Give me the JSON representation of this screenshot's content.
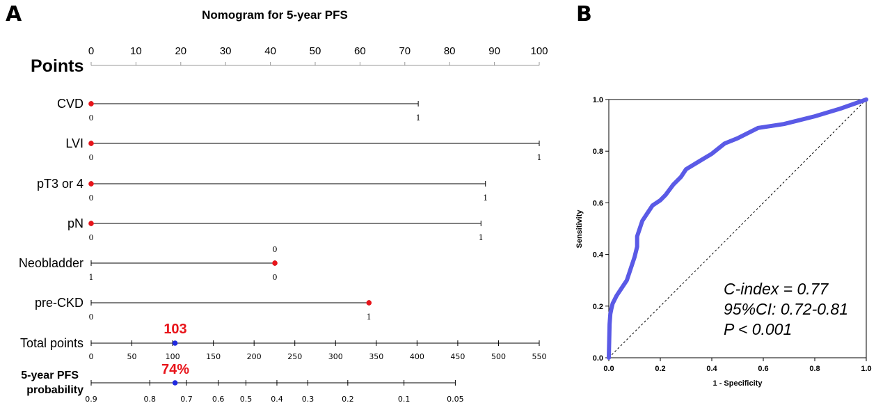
{
  "chart_data": [
    {
      "type": "nomogram",
      "panel_label": "A",
      "title": "Nomogram for 5-year PFS",
      "points_scale": {
        "label": "Points",
        "range": [
          0,
          100
        ],
        "tick_values": [
          0,
          10,
          20,
          30,
          40,
          50,
          60,
          70,
          80,
          90,
          100
        ]
      },
      "variables": [
        {
          "name": "CVD",
          "levels": [
            {
              "label": "0",
              "points": 0
            },
            {
              "label": "1",
              "points": 73
            }
          ],
          "selected_points": 0
        },
        {
          "name": "LVI",
          "levels": [
            {
              "label": "0",
              "points": 0
            },
            {
              "label": "1",
              "points": 100
            }
          ],
          "selected_points": 0
        },
        {
          "name": "pT3 or 4",
          "levels": [
            {
              "label": "0",
              "points": 0
            },
            {
              "label": "1",
              "points": 88
            }
          ],
          "selected_points": 0
        },
        {
          "name": "pN",
          "levels": [
            {
              "label": "0",
              "points": 0
            },
            {
              "label": "1",
              "points": 87
            }
          ],
          "selected_points": 0
        },
        {
          "name": "Neobladder",
          "levels": [
            {
              "label": "1",
              "points": 0
            },
            {
              "label": "0",
              "points": 41
            }
          ],
          "top_label": "0",
          "selected_points": 41
        },
        {
          "name": "pre-CKD",
          "levels": [
            {
              "label": "0",
              "points": 0
            },
            {
              "label": "1",
              "points": 62
            }
          ],
          "selected_points": 62
        }
      ],
      "total_points": {
        "label": "Total points",
        "range": [
          0,
          550
        ],
        "tick_values": [
          0,
          50,
          100,
          150,
          200,
          250,
          300,
          350,
          400,
          450,
          500,
          550
        ],
        "highlight_value": 103,
        "highlight_label": "103"
      },
      "probability": {
        "label_line1": "5-year PFS",
        "label_line2": "probability",
        "ticks": [
          {
            "label": "0.9",
            "value": 0.9,
            "at_total": 0
          },
          {
            "label": "0.8",
            "value": 0.8,
            "at_total": 72
          },
          {
            "label": "0.7",
            "value": 0.7,
            "at_total": 117
          },
          {
            "label": "0.6",
            "value": 0.6,
            "at_total": 156
          },
          {
            "label": "0.5",
            "value": 0.5,
            "at_total": 190
          },
          {
            "label": "0.4",
            "value": 0.4,
            "at_total": 228
          },
          {
            "label": "0.3",
            "value": 0.3,
            "at_total": 266
          },
          {
            "label": "0.2",
            "value": 0.2,
            "at_total": 315
          },
          {
            "label": "0.1",
            "value": 0.1,
            "at_total": 384
          },
          {
            "label": "0.05",
            "value": 0.05,
            "at_total": 447
          }
        ],
        "highlight_at_total": 103,
        "highlight_label": "74%"
      }
    },
    {
      "type": "line",
      "panel_label": "B",
      "xlabel": "1 - Specificity",
      "ylabel": "Sensitivity",
      "xlim": [
        0,
        1
      ],
      "ylim": [
        0,
        1
      ],
      "tick_values": [
        0.0,
        0.2,
        0.4,
        0.6,
        0.8,
        1.0
      ],
      "tick_labels": [
        "0.0",
        "0.2",
        "0.4",
        "0.6",
        "0.8",
        "1.0"
      ],
      "series": [
        {
          "x": [
            0,
            0.003,
            0.006,
            0.01,
            0.015,
            0.02,
            0.03,
            0.05,
            0.07,
            0.08,
            0.09,
            0.1,
            0.11,
            0.11,
            0.12,
            0.13,
            0.15,
            0.17,
            0.2,
            0.22,
            0.25,
            0.28,
            0.3,
            0.35,
            0.4,
            0.45,
            0.5,
            0.58,
            0.68,
            0.8,
            0.9,
            1.0
          ],
          "y": [
            0,
            0.13,
            0.17,
            0.19,
            0.21,
            0.22,
            0.24,
            0.27,
            0.3,
            0.33,
            0.36,
            0.39,
            0.43,
            0.47,
            0.5,
            0.53,
            0.56,
            0.59,
            0.61,
            0.63,
            0.67,
            0.7,
            0.73,
            0.76,
            0.79,
            0.83,
            0.85,
            0.89,
            0.905,
            0.935,
            0.965,
            1.0
          ],
          "color": "#5a5ae6"
        }
      ],
      "reference_line": {
        "x": [
          0,
          1
        ],
        "y": [
          0,
          1
        ],
        "style": "dashed"
      },
      "annotations": [
        "C-index = 0.77",
        "95%CI: 0.72-0.81",
        "P < 0.001"
      ]
    }
  ],
  "colors": {
    "marker_red": "#e8141a",
    "marker_blue": "#1f29e0",
    "roc_line": "#5a5ae6"
  }
}
